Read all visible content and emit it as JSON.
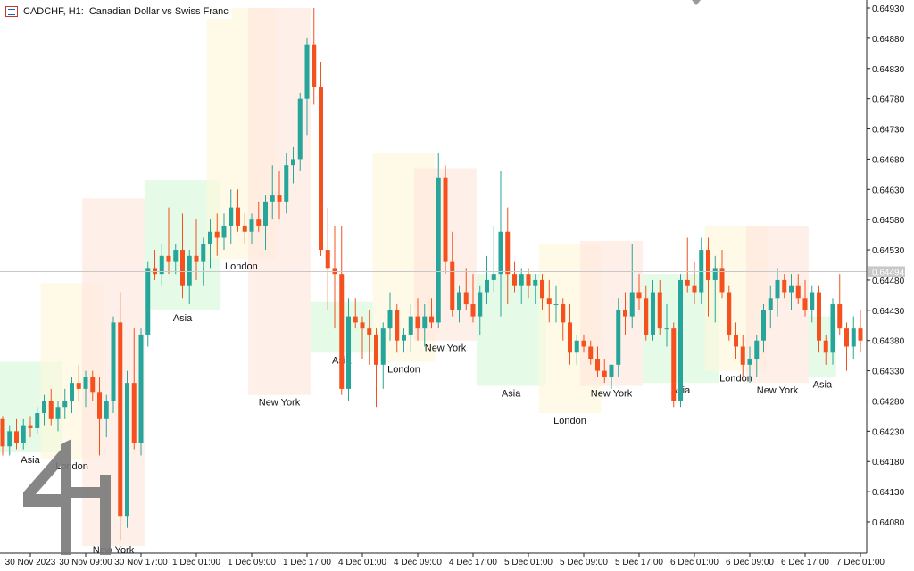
{
  "header": {
    "symbol_label": "CADCHF, H1:",
    "description": "Canadian Dollar vs Swiss Franc"
  },
  "colors": {
    "up": "#26a69a",
    "down": "#f4511e",
    "asia": "#dcfadf",
    "london": "#fdf7da",
    "newyork": "#fde6dc",
    "grid_line": "#c8c8c8",
    "axis": "#222222",
    "current_price_bg": "#c8c8c8"
  },
  "logo": {
    "icon": "4h-logo-icon"
  },
  "chart_data": {
    "type": "candlestick",
    "ylim": [
      0.6404,
      0.6495
    ],
    "price_ticks": [
      "0.64930",
      "0.64880",
      "0.64830",
      "0.64780",
      "0.64730",
      "0.64680",
      "0.64630",
      "0.64580",
      "0.64530",
      "0.64480",
      "0.64430",
      "0.64380",
      "0.64330",
      "0.64280",
      "0.64230",
      "0.64180",
      "0.64130",
      "0.64080"
    ],
    "current_price": "0.64494",
    "time_labels": [
      {
        "bar": 4,
        "text": "30 Nov 2023"
      },
      {
        "bar": 12,
        "text": "30 Nov 09:00"
      },
      {
        "bar": 20,
        "text": "30 Nov 17:00"
      },
      {
        "bar": 28,
        "text": "1 Dec 01:00"
      },
      {
        "bar": 36,
        "text": "1 Dec 09:00"
      },
      {
        "bar": 44,
        "text": "1 Dec 17:00"
      },
      {
        "bar": 52,
        "text": "4 Dec 01:00"
      },
      {
        "bar": 60,
        "text": "4 Dec 09:00"
      },
      {
        "bar": 68,
        "text": "4 Dec 17:00"
      },
      {
        "bar": 76,
        "text": "5 Dec 01:00"
      },
      {
        "bar": 84,
        "text": "5 Dec 09:00"
      },
      {
        "bar": 92,
        "text": "5 Dec 17:00"
      },
      {
        "bar": 100,
        "text": "6 Dec 01:00"
      },
      {
        "bar": 108,
        "text": "6 Dec 09:00"
      },
      {
        "bar": 116,
        "text": "6 Dec 17:00"
      },
      {
        "bar": 124,
        "text": "7 Dec 01:00"
      }
    ],
    "sessions": [
      {
        "name": "Asia",
        "kind": "asia",
        "start": 0,
        "end": 9,
        "hi": 0.64345,
        "lo": 0.64195
      },
      {
        "name": "London",
        "kind": "london",
        "start": 6,
        "end": 15,
        "hi": 0.64475,
        "lo": 0.64185
      },
      {
        "name": "New York",
        "kind": "newyork",
        "start": 12,
        "end": 21,
        "hi": 0.64615,
        "lo": 0.6404
      },
      {
        "name": "Asia",
        "kind": "asia",
        "start": 21,
        "end": 32,
        "hi": 0.64645,
        "lo": 0.6443
      },
      {
        "name": "London",
        "kind": "london",
        "start": 30,
        "end": 40,
        "hi": 0.6493,
        "lo": 0.64515
      },
      {
        "name": "New York",
        "kind": "newyork",
        "start": 36,
        "end": 45,
        "hi": 0.6493,
        "lo": 0.6429
      },
      {
        "name": "Asia",
        "kind": "asia",
        "start": 45,
        "end": 54,
        "hi": 0.64445,
        "lo": 0.6436
      },
      {
        "name": "London",
        "kind": "london",
        "start": 54,
        "end": 63,
        "hi": 0.6469,
        "lo": 0.64345
      },
      {
        "name": "New York",
        "kind": "newyork",
        "start": 60,
        "end": 69,
        "hi": 0.64665,
        "lo": 0.6438
      },
      {
        "name": "Asia",
        "kind": "asia",
        "start": 69,
        "end": 79,
        "hi": 0.6449,
        "lo": 0.64305
      },
      {
        "name": "London",
        "kind": "london",
        "start": 78,
        "end": 87,
        "hi": 0.6454,
        "lo": 0.6426
      },
      {
        "name": "New York",
        "kind": "newyork",
        "start": 84,
        "end": 93,
        "hi": 0.64545,
        "lo": 0.64305
      },
      {
        "name": "Asia",
        "kind": "asia",
        "start": 93,
        "end": 104,
        "hi": 0.6449,
        "lo": 0.6431
      },
      {
        "name": "London",
        "kind": "london",
        "start": 102,
        "end": 111,
        "hi": 0.6457,
        "lo": 0.6433
      },
      {
        "name": "New York",
        "kind": "newyork",
        "start": 108,
        "end": 117,
        "hi": 0.6457,
        "lo": 0.6431
      },
      {
        "name": "Asia",
        "kind": "asia",
        "start": 117,
        "end": 121,
        "hi": 0.6442,
        "lo": 0.6432
      }
    ],
    "candles": [
      [
        0.6425,
        0.64255,
        0.6419,
        0.64205
      ],
      [
        0.64205,
        0.6424,
        0.6419,
        0.6423
      ],
      [
        0.6423,
        0.6425,
        0.642,
        0.6421
      ],
      [
        0.6421,
        0.6425,
        0.642,
        0.6424
      ],
      [
        0.6424,
        0.64255,
        0.6422,
        0.64235
      ],
      [
        0.64235,
        0.6427,
        0.64225,
        0.6426
      ],
      [
        0.6426,
        0.6429,
        0.6424,
        0.6428
      ],
      [
        0.6428,
        0.643,
        0.6424,
        0.6425
      ],
      [
        0.6425,
        0.6428,
        0.6423,
        0.6427
      ],
      [
        0.6427,
        0.643,
        0.6425,
        0.6428
      ],
      [
        0.6428,
        0.6432,
        0.6426,
        0.6431
      ],
      [
        0.6431,
        0.6434,
        0.6428,
        0.643
      ],
      [
        0.643,
        0.6433,
        0.6427,
        0.6432
      ],
      [
        0.6432,
        0.6433,
        0.6428,
        0.64295
      ],
      [
        0.64295,
        0.6432,
        0.6419,
        0.6425
      ],
      [
        0.6425,
        0.6429,
        0.6422,
        0.6428
      ],
      [
        0.6428,
        0.6442,
        0.6426,
        0.6441
      ],
      [
        0.6441,
        0.6446,
        0.6405,
        0.6409
      ],
      [
        0.6409,
        0.6433,
        0.6407,
        0.6431
      ],
      [
        0.6431,
        0.644,
        0.642,
        0.6421
      ],
      [
        0.6421,
        0.644,
        0.6419,
        0.6439
      ],
      [
        0.6439,
        0.6451,
        0.6437,
        0.645
      ],
      [
        0.645,
        0.6453,
        0.6448,
        0.6449
      ],
      [
        0.6449,
        0.6454,
        0.6447,
        0.6452
      ],
      [
        0.6452,
        0.646,
        0.6449,
        0.6451
      ],
      [
        0.6451,
        0.6454,
        0.6449,
        0.6453
      ],
      [
        0.6453,
        0.6459,
        0.6445,
        0.6447
      ],
      [
        0.6447,
        0.6453,
        0.6444,
        0.6452
      ],
      [
        0.6452,
        0.6458,
        0.6448,
        0.6451
      ],
      [
        0.6451,
        0.6455,
        0.6447,
        0.6454
      ],
      [
        0.6454,
        0.6458,
        0.645,
        0.6456
      ],
      [
        0.6456,
        0.6459,
        0.6452,
        0.6455
      ],
      [
        0.6455,
        0.6459,
        0.6453,
        0.6457
      ],
      [
        0.6457,
        0.6463,
        0.6454,
        0.646
      ],
      [
        0.646,
        0.6463,
        0.6456,
        0.6457
      ],
      [
        0.6457,
        0.6459,
        0.6454,
        0.6456
      ],
      [
        0.6456,
        0.6459,
        0.6454,
        0.6458
      ],
      [
        0.6458,
        0.6461,
        0.6456,
        0.6457
      ],
      [
        0.6457,
        0.6462,
        0.6453,
        0.6461
      ],
      [
        0.6461,
        0.6467,
        0.6458,
        0.6462
      ],
      [
        0.6462,
        0.6466,
        0.6458,
        0.6461
      ],
      [
        0.6461,
        0.6469,
        0.6459,
        0.6467
      ],
      [
        0.6467,
        0.647,
        0.6464,
        0.6468
      ],
      [
        0.6468,
        0.6479,
        0.6466,
        0.6478
      ],
      [
        0.6478,
        0.6488,
        0.6472,
        0.6487
      ],
      [
        0.6487,
        0.6493,
        0.6477,
        0.648
      ],
      [
        0.648,
        0.6484,
        0.6452,
        0.6453
      ],
      [
        0.6453,
        0.646,
        0.6443,
        0.645
      ],
      [
        0.645,
        0.6457,
        0.644,
        0.6449
      ],
      [
        0.6449,
        0.6457,
        0.6429,
        0.643
      ],
      [
        0.643,
        0.6445,
        0.6428,
        0.6442
      ],
      [
        0.6442,
        0.6445,
        0.644,
        0.6441
      ],
      [
        0.6441,
        0.6442,
        0.6435,
        0.644
      ],
      [
        0.644,
        0.6443,
        0.6434,
        0.6439
      ],
      [
        0.6439,
        0.644,
        0.6427,
        0.6434
      ],
      [
        0.6434,
        0.6441,
        0.643,
        0.644
      ],
      [
        0.644,
        0.6446,
        0.6438,
        0.6443
      ],
      [
        0.6443,
        0.6444,
        0.6436,
        0.6438
      ],
      [
        0.6438,
        0.644,
        0.6436,
        0.6439
      ],
      [
        0.6439,
        0.6444,
        0.6436,
        0.6442
      ],
      [
        0.6442,
        0.6445,
        0.6438,
        0.644
      ],
      [
        0.644,
        0.6444,
        0.6437,
        0.6442
      ],
      [
        0.6442,
        0.6445,
        0.644,
        0.6441
      ],
      [
        0.6441,
        0.6469,
        0.644,
        0.6465
      ],
      [
        0.6465,
        0.6467,
        0.6449,
        0.6451
      ],
      [
        0.6451,
        0.6456,
        0.6442,
        0.6443
      ],
      [
        0.6443,
        0.6447,
        0.6441,
        0.6446
      ],
      [
        0.6446,
        0.645,
        0.6443,
        0.6444
      ],
      [
        0.6444,
        0.6449,
        0.6441,
        0.6442
      ],
      [
        0.6442,
        0.6447,
        0.6439,
        0.6446
      ],
      [
        0.6446,
        0.6452,
        0.6444,
        0.6448
      ],
      [
        0.6448,
        0.6457,
        0.6446,
        0.6449
      ],
      [
        0.6449,
        0.6466,
        0.6442,
        0.6456
      ],
      [
        0.6456,
        0.646,
        0.6444,
        0.6449
      ],
      [
        0.6449,
        0.6451,
        0.6446,
        0.6447
      ],
      [
        0.6447,
        0.645,
        0.6444,
        0.6449
      ],
      [
        0.6449,
        0.645,
        0.6445,
        0.6447
      ],
      [
        0.6447,
        0.6449,
        0.6444,
        0.6448
      ],
      [
        0.6448,
        0.6449,
        0.6443,
        0.6445
      ],
      [
        0.6445,
        0.6448,
        0.6441,
        0.6444
      ],
      [
        0.6444,
        0.6447,
        0.6441,
        0.6444
      ],
      [
        0.6444,
        0.6445,
        0.6438,
        0.6441
      ],
      [
        0.6441,
        0.6444,
        0.6434,
        0.6436
      ],
      [
        0.6436,
        0.6439,
        0.6434,
        0.6438
      ],
      [
        0.6438,
        0.6439,
        0.6436,
        0.6437
      ],
      [
        0.6437,
        0.6438,
        0.6434,
        0.6435
      ],
      [
        0.6435,
        0.6437,
        0.6432,
        0.6433
      ],
      [
        0.6433,
        0.6435,
        0.6431,
        0.6432
      ],
      [
        0.6432,
        0.6434,
        0.643,
        0.6434
      ],
      [
        0.6434,
        0.6445,
        0.6432,
        0.6443
      ],
      [
        0.6443,
        0.6446,
        0.6439,
        0.6442
      ],
      [
        0.6442,
        0.6454,
        0.644,
        0.6446
      ],
      [
        0.6446,
        0.6449,
        0.6443,
        0.6445
      ],
      [
        0.6445,
        0.6447,
        0.6438,
        0.6439
      ],
      [
        0.6439,
        0.6448,
        0.6438,
        0.6446
      ],
      [
        0.6446,
        0.6448,
        0.6439,
        0.644
      ],
      [
        0.644,
        0.6444,
        0.6437,
        0.644
      ],
      [
        0.644,
        0.6441,
        0.6427,
        0.6428
      ],
      [
        0.6428,
        0.6449,
        0.6427,
        0.6448
      ],
      [
        0.6448,
        0.6455,
        0.6446,
        0.6447
      ],
      [
        0.6447,
        0.6451,
        0.6444,
        0.6446
      ],
      [
        0.6446,
        0.6455,
        0.6444,
        0.6453
      ],
      [
        0.6453,
        0.6455,
        0.6442,
        0.6448
      ],
      [
        0.6448,
        0.6452,
        0.6441,
        0.645
      ],
      [
        0.645,
        0.6453,
        0.6445,
        0.6446
      ],
      [
        0.6446,
        0.6447,
        0.6438,
        0.6439
      ],
      [
        0.6439,
        0.6441,
        0.6435,
        0.6437
      ],
      [
        0.6437,
        0.6439,
        0.6432,
        0.6434
      ],
      [
        0.6434,
        0.6437,
        0.6431,
        0.6435
      ],
      [
        0.6435,
        0.6439,
        0.6432,
        0.6438
      ],
      [
        0.6438,
        0.6444,
        0.6436,
        0.6443
      ],
      [
        0.6443,
        0.6447,
        0.644,
        0.6445
      ],
      [
        0.6445,
        0.645,
        0.6442,
        0.6448
      ],
      [
        0.6448,
        0.6449,
        0.6445,
        0.6446
      ],
      [
        0.6446,
        0.6449,
        0.6443,
        0.6447
      ],
      [
        0.6447,
        0.6449,
        0.6444,
        0.6445
      ],
      [
        0.6445,
        0.6448,
        0.6442,
        0.6443
      ],
      [
        0.6443,
        0.6447,
        0.6441,
        0.6446
      ],
      [
        0.6446,
        0.6447,
        0.6436,
        0.6438
      ],
      [
        0.6438,
        0.6439,
        0.6434,
        0.6436
      ],
      [
        0.6436,
        0.6445,
        0.6434,
        0.6444
      ],
      [
        0.6444,
        0.6449,
        0.6439,
        0.644
      ],
      [
        0.644,
        0.6441,
        0.6433,
        0.6437
      ],
      [
        0.6437,
        0.6442,
        0.6435,
        0.644
      ],
      [
        0.644,
        0.6443,
        0.6436,
        0.6438
      ],
      [
        0.6438,
        0.6441,
        0.6434,
        0.6437
      ]
    ]
  }
}
